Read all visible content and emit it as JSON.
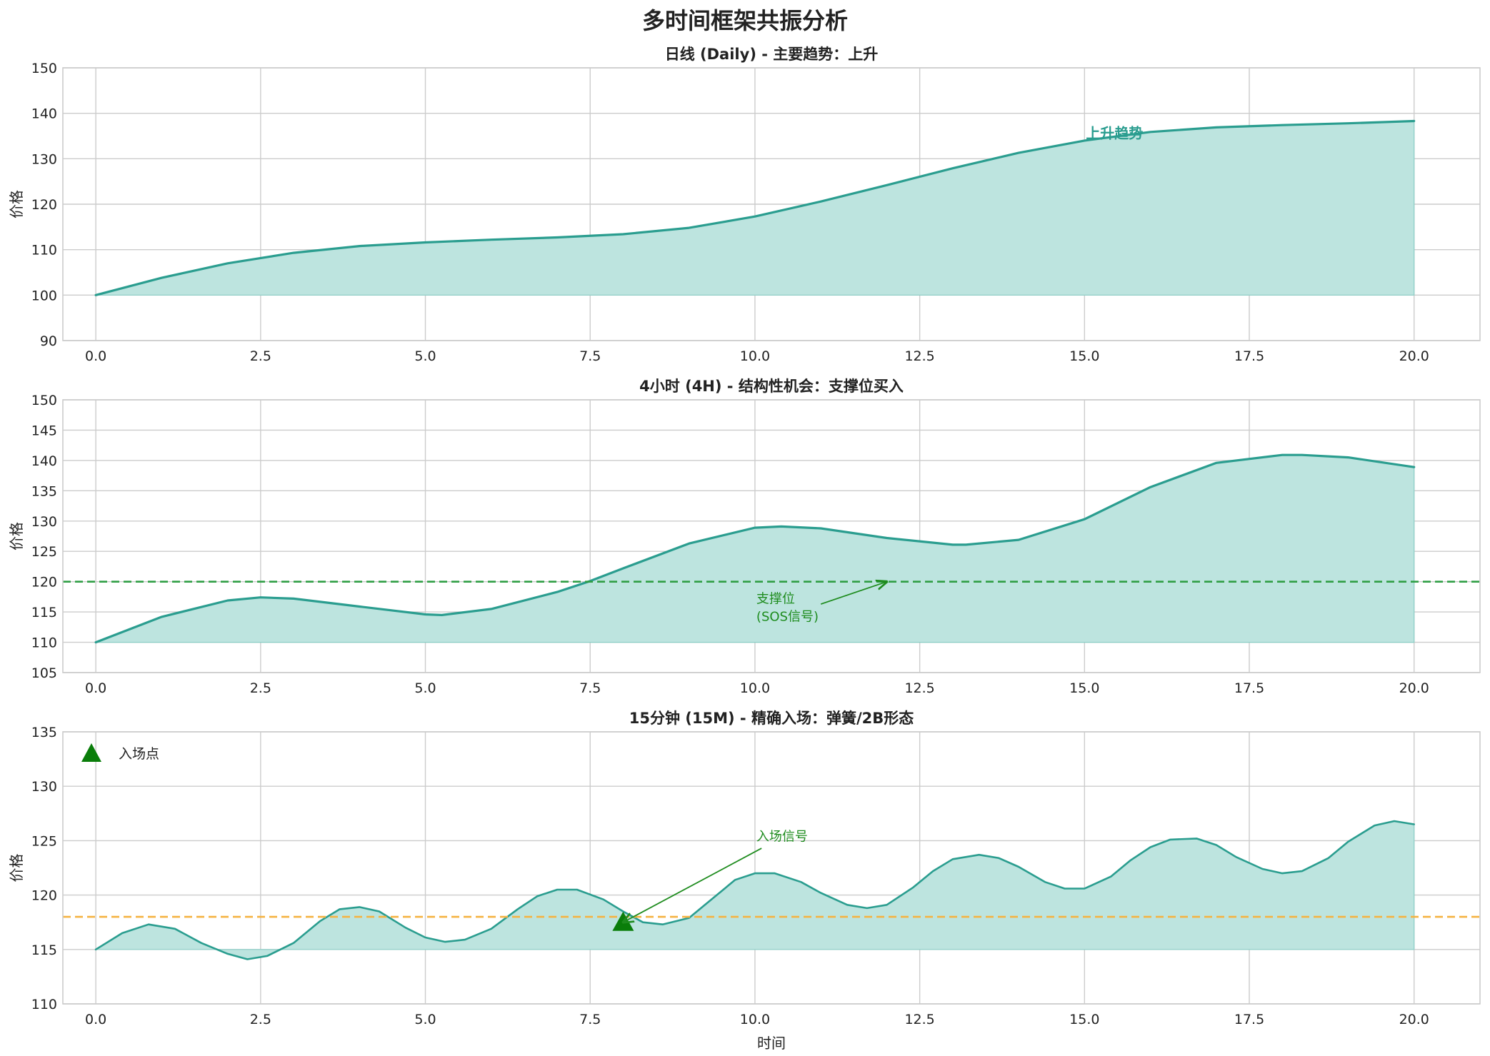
{
  "figure": {
    "title": "多时间框架共振分析"
  },
  "colors": {
    "line": "#2a9d8f",
    "fill": "#bde4df",
    "support": "#2f9e44",
    "entry_level": "#f5b342",
    "annotation": "#1e8c1e",
    "entry_marker": "#0a7d0a"
  },
  "chart_data": [
    {
      "type": "area",
      "title": "日线 (Daily) - 主要趋势：上升",
      "xlabel": "",
      "ylabel": "价格",
      "xlim": [
        -0.5,
        21
      ],
      "ylim": [
        90,
        150
      ],
      "fill_baseline": 100,
      "xticks": [
        0,
        2.5,
        5,
        7.5,
        10,
        12.5,
        15,
        17.5,
        20
      ],
      "xtick_labels": [
        "0.0",
        "2.5",
        "5.0",
        "7.5",
        "10.0",
        "12.5",
        "15.0",
        "17.5",
        "20.0"
      ],
      "yticks": [
        90,
        100,
        110,
        120,
        130,
        140,
        150
      ],
      "ytick_labels": [
        "90",
        "100",
        "110",
        "120",
        "130",
        "140",
        "150"
      ],
      "grid": true,
      "series": [
        {
          "x": [
            0,
            1,
            2,
            3,
            4,
            5,
            6,
            7,
            8,
            9,
            10,
            11,
            12,
            13,
            14,
            15,
            16,
            17,
            18,
            19,
            20
          ],
          "y": [
            100,
            103.8,
            107,
            109.3,
            110.8,
            111.6,
            112.2,
            112.7,
            113.4,
            114.8,
            117.3,
            120.6,
            124.2,
            127.9,
            131.3,
            134.0,
            135.9,
            136.9,
            137.4,
            137.8,
            138.3
          ]
        }
      ],
      "annotations": [
        {
          "text": "上升趋势",
          "x": 15,
          "y": 134.5,
          "bold": true
        }
      ]
    },
    {
      "type": "area",
      "title": "4小时 (4H) - 结构性机会：支撑位买入",
      "xlabel": "",
      "ylabel": "价格",
      "xlim": [
        -0.5,
        21
      ],
      "ylim": [
        105,
        150
      ],
      "fill_baseline": 110,
      "xticks": [
        0,
        2.5,
        5,
        7.5,
        10,
        12.5,
        15,
        17.5,
        20
      ],
      "xtick_labels": [
        "0.0",
        "2.5",
        "5.0",
        "7.5",
        "10.0",
        "12.5",
        "15.0",
        "17.5",
        "20.0"
      ],
      "yticks": [
        105,
        110,
        115,
        120,
        125,
        130,
        135,
        140,
        145,
        150
      ],
      "ytick_labels": [
        "105",
        "110",
        "115",
        "120",
        "125",
        "130",
        "135",
        "140",
        "145",
        "150"
      ],
      "grid": true,
      "series": [
        {
          "x": [
            0,
            1,
            2,
            2.5,
            3,
            4,
            5,
            5.25,
            6,
            7,
            7.5,
            8,
            9,
            10,
            10.4,
            11,
            12,
            13,
            13.2,
            14,
            15,
            16,
            17,
            18,
            18.3,
            19,
            20
          ],
          "y": [
            110,
            114.2,
            116.9,
            117.4,
            117.2,
            115.9,
            114.6,
            114.5,
            115.5,
            118.3,
            120.1,
            122.2,
            126.3,
            128.9,
            129.1,
            128.8,
            127.2,
            126.1,
            126.1,
            126.9,
            130.3,
            135.6,
            139.6,
            140.9,
            140.9,
            140.5,
            138.9
          ]
        }
      ],
      "hlines": [
        {
          "y": 120,
          "style": "dashed",
          "color": "support"
        }
      ],
      "annotations": [
        {
          "text": [
            "支撑位",
            "(SOS信号)"
          ],
          "x": 10,
          "y": 116.5,
          "arrow_from": [
            11,
            116.3
          ],
          "arrow_to": [
            12,
            120
          ]
        }
      ]
    },
    {
      "type": "area",
      "title": "15分钟 (15M) - 精确入场：弹簧/2B形态",
      "xlabel": "时间",
      "ylabel": "价格",
      "xlim": [
        -0.5,
        21
      ],
      "ylim": [
        110,
        135
      ],
      "fill_baseline": 115,
      "xticks": [
        0,
        2.5,
        5,
        7.5,
        10,
        12.5,
        15,
        17.5,
        20
      ],
      "xtick_labels": [
        "0.0",
        "2.5",
        "5.0",
        "7.5",
        "10.0",
        "12.5",
        "15.0",
        "17.5",
        "20.0"
      ],
      "yticks": [
        110,
        115,
        120,
        125,
        130,
        135
      ],
      "ytick_labels": [
        "110",
        "115",
        "120",
        "125",
        "130",
        "135"
      ],
      "grid": true,
      "series": [
        {
          "x": [
            0,
            0.4,
            0.8,
            1.2,
            1.6,
            2.0,
            2.3,
            2.6,
            3.0,
            3.4,
            3.7,
            4.0,
            4.3,
            4.7,
            5.0,
            5.3,
            5.6,
            6.0,
            6.4,
            6.7,
            7.0,
            7.3,
            7.7,
            8.0,
            8.3,
            8.6,
            9.0,
            9.4,
            9.7,
            10.0,
            10.3,
            10.7,
            11.0,
            11.4,
            11.7,
            12.0,
            12.4,
            12.7,
            13.0,
            13.4,
            13.7,
            14.0,
            14.4,
            14.7,
            15.0,
            15.4,
            15.7,
            16.0,
            16.3,
            16.7,
            17.0,
            17.3,
            17.7,
            18.0,
            18.3,
            18.7,
            19.0,
            19.4,
            19.7,
            20.0
          ],
          "y": [
            115.0,
            116.5,
            117.3,
            116.9,
            115.6,
            114.6,
            114.1,
            114.4,
            115.6,
            117.6,
            118.7,
            118.9,
            118.5,
            117.0,
            116.1,
            115.7,
            115.9,
            116.9,
            118.7,
            119.9,
            120.5,
            120.5,
            119.6,
            118.5,
            117.5,
            117.3,
            117.9,
            119.9,
            121.4,
            122.0,
            122.0,
            121.2,
            120.2,
            119.1,
            118.8,
            119.1,
            120.7,
            122.2,
            123.3,
            123.7,
            123.4,
            122.6,
            121.2,
            120.6,
            120.6,
            121.7,
            123.2,
            124.4,
            125.1,
            125.2,
            124.6,
            123.5,
            122.4,
            122.0,
            122.2,
            123.4,
            124.9,
            126.4,
            126.8,
            126.5
          ]
        }
      ],
      "hlines": [
        {
          "y": 118,
          "style": "dashed",
          "color": "entry_level"
        }
      ],
      "markers": [
        {
          "x": 8,
          "y": 117.5,
          "shape": "triangle",
          "label": "入场点"
        }
      ],
      "annotations": [
        {
          "text": "入场信号",
          "x": 10,
          "y": 125,
          "arrow_from": [
            10.1,
            124.3
          ],
          "arrow_to": [
            8,
            117.5
          ]
        }
      ],
      "legend": {
        "placement": "top-left",
        "entries": [
          "入场点"
        ]
      }
    }
  ]
}
